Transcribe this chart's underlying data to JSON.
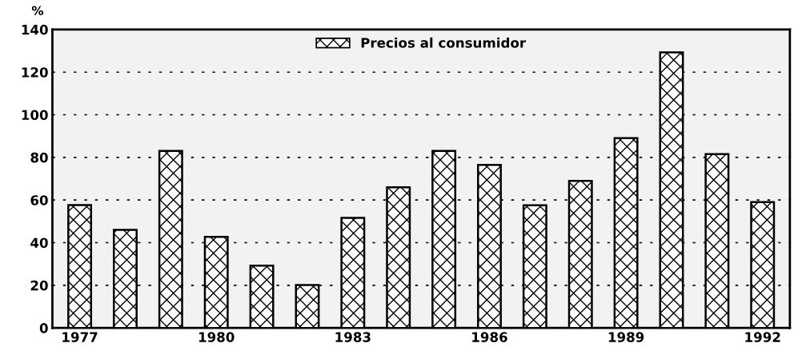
{
  "chart_data": {
    "type": "bar",
    "ylabel": "%",
    "categories": [
      "1977",
      null,
      null,
      "1980",
      null,
      null,
      "1983",
      null,
      null,
      "1986",
      null,
      null,
      "1989",
      null,
      null,
      "1992"
    ],
    "series": [
      {
        "name": "Precios al consumidor",
        "color": "#000000",
        "values": [
          57.6,
          46,
          83,
          42.7,
          29.2,
          20.1,
          51.6,
          66,
          83,
          76.5,
          57.5,
          69,
          89,
          129.3,
          81.5,
          59
        ]
      }
    ],
    "ylim": [
      0,
      140
    ],
    "yticks": [
      0,
      20,
      40,
      60,
      80,
      100,
      120,
      140
    ],
    "grid": "y",
    "legend": "top"
  }
}
